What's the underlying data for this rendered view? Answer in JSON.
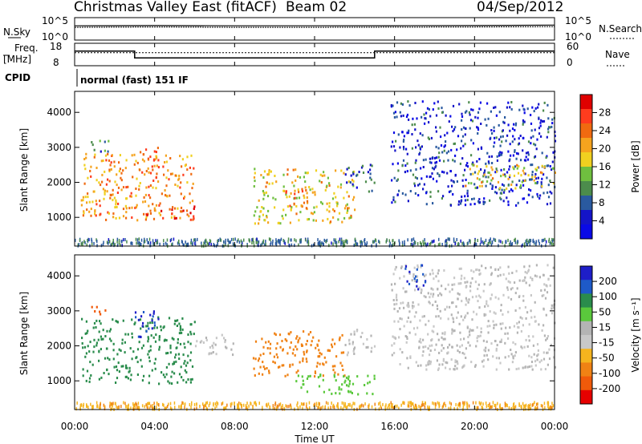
{
  "header": {
    "station": "Christmas Valley East (fitACF)",
    "beam": "Beam 02",
    "date": "04/Sep/2012"
  },
  "noise_panel": {
    "left_label": "N.Sky",
    "right_label": "N.Search",
    "left_ticks": [
      "10^5",
      "10^0"
    ],
    "right_ticks": [
      "10^5",
      "10^0"
    ]
  },
  "freq_panel": {
    "left_label_1": "Freq.",
    "left_label_2": "[MHz]",
    "right_label": "Nave",
    "left_ticks": [
      "18",
      "8"
    ],
    "right_ticks": [
      "60",
      "0"
    ]
  },
  "cpid_panel": {
    "label": "CPID",
    "mode_text": "normal (fast) 151 IF"
  },
  "power_colorbar": {
    "label": "Power [dB]",
    "ticks": [
      "28",
      "24",
      "20",
      "16",
      "12",
      "8",
      "4"
    ],
    "colors": [
      "#e00000",
      "#ff3c1e",
      "#f06a10",
      "#f5a31e",
      "#f0d020",
      "#6fbf3f",
      "#4c8c4c",
      "#2a5aa0",
      "#1414c8",
      "#0a0ae6"
    ]
  },
  "velocity_colorbar": {
    "label": "Velocity [m s⁻¹]",
    "ticks": [
      "200",
      "100",
      "50",
      "15",
      "-15",
      "-50",
      "-100",
      "-200"
    ],
    "colors": [
      "#1e1ec8",
      "#1e5ac8",
      "#2a8c4c",
      "#5ac83c",
      "#b4b4b4",
      "#c8c8c8",
      "#f5b41e",
      "#f08214",
      "#f05a0a",
      "#e60000"
    ]
  },
  "x_axis": {
    "label": "Time UT",
    "ticks": [
      "00:00",
      "04:00",
      "08:00",
      "12:00",
      "16:00",
      "20:00",
      "00:00"
    ]
  },
  "chart_data": [
    {
      "type": "line",
      "title": "N.Sky / N.Search",
      "x": [
        "00:00",
        "04:00",
        "08:00",
        "12:00",
        "16:00",
        "20:00",
        "24:00"
      ],
      "series": [
        {
          "name": "N.Sky",
          "values": [
            1500,
            1700,
            1500,
            1500,
            1600,
            1700,
            2200
          ]
        },
        {
          "name": "N.Search",
          "values": [
            700,
            800,
            700,
            700,
            750,
            800,
            1000
          ]
        }
      ],
      "ylim": [
        1,
        100000
      ],
      "yscale": "log"
    },
    {
      "type": "line",
      "title": "Freq. [MHz] / Nave",
      "x": [
        "00:00",
        "03:00",
        "03:00",
        "15:00",
        "15:00",
        "24:00"
      ],
      "series": [
        {
          "name": "Freq.",
          "values": [
            14.5,
            14.5,
            11.5,
            11.5,
            14.5,
            14.5
          ]
        },
        {
          "name": "Nave",
          "values": [
            35,
            35,
            35,
            35,
            35,
            35
          ]
        }
      ],
      "ylim": [
        8,
        18
      ]
    },
    {
      "type": "heatmap",
      "title": "Power [dB]",
      "xlabel": "Time UT",
      "ylabel": "Slant Range [km]",
      "xlim": [
        "00:00",
        "24:00"
      ],
      "ylim": [
        180,
        4600
      ],
      "y_ticks": [
        1000,
        2000,
        3000,
        4000
      ],
      "colorbar_ticks": [
        4,
        8,
        12,
        16,
        20,
        24,
        28
      ],
      "regions": [
        {
          "t0": 0.3,
          "t1": 6.0,
          "r0": 900,
          "r1": 2800,
          "value": 22
        },
        {
          "t0": 0.8,
          "t1": 1.8,
          "r0": 2800,
          "r1": 3200,
          "value": 10
        },
        {
          "t0": 3.0,
          "t1": 4.2,
          "r0": 2200,
          "r1": 3000,
          "value": 24
        },
        {
          "t0": 3.5,
          "t1": 6.0,
          "r0": 900,
          "r1": 1300,
          "value": 26
        },
        {
          "t0": 8.9,
          "t1": 14.0,
          "r0": 800,
          "r1": 2400,
          "value": 18
        },
        {
          "t0": 10.5,
          "t1": 12.0,
          "r0": 1300,
          "r1": 1800,
          "value": 24
        },
        {
          "t0": 13.5,
          "t1": 15.0,
          "r0": 1700,
          "r1": 2500,
          "value": 8
        },
        {
          "t0": 15.8,
          "t1": 24.0,
          "r0": 1300,
          "r1": 4300,
          "value": 6
        },
        {
          "t0": 19.5,
          "t1": 24.0,
          "r0": 1800,
          "r1": 2500,
          "value": 18
        }
      ]
    },
    {
      "type": "heatmap",
      "title": "Velocity [m s⁻¹]",
      "xlabel": "Time UT",
      "ylabel": "Slant Range [km]",
      "xlim": [
        "00:00",
        "24:00"
      ],
      "ylim": [
        180,
        4600
      ],
      "y_ticks": [
        1000,
        2000,
        3000,
        4000
      ],
      "colorbar_ticks": [
        -200,
        -100,
        -50,
        -15,
        15,
        50,
        100,
        200
      ],
      "regions": [
        {
          "t0": 0.3,
          "t1": 6.0,
          "r0": 900,
          "r1": 2800,
          "value": 60
        },
        {
          "t0": 3.0,
          "t1": 4.2,
          "r0": 2200,
          "r1": 3000,
          "value": 200
        },
        {
          "t0": 0.8,
          "t1": 1.5,
          "r0": 2800,
          "r1": 3200,
          "value": -200
        },
        {
          "t0": 6.0,
          "t1": 8.0,
          "r0": 1700,
          "r1": 2300,
          "value": 0
        },
        {
          "t0": 8.9,
          "t1": 13.5,
          "r0": 1100,
          "r1": 2400,
          "value": -80
        },
        {
          "t0": 11.0,
          "t1": 15.0,
          "r0": 600,
          "r1": 1200,
          "value": 30
        },
        {
          "t0": 13.5,
          "t1": 15.0,
          "r0": 1700,
          "r1": 2500,
          "value": 0
        },
        {
          "t0": 15.8,
          "t1": 24.0,
          "r0": 1300,
          "r1": 4300,
          "value": 0
        },
        {
          "t0": 16.5,
          "t1": 17.5,
          "r0": 3500,
          "r1": 4300,
          "value": 200
        }
      ]
    }
  ]
}
